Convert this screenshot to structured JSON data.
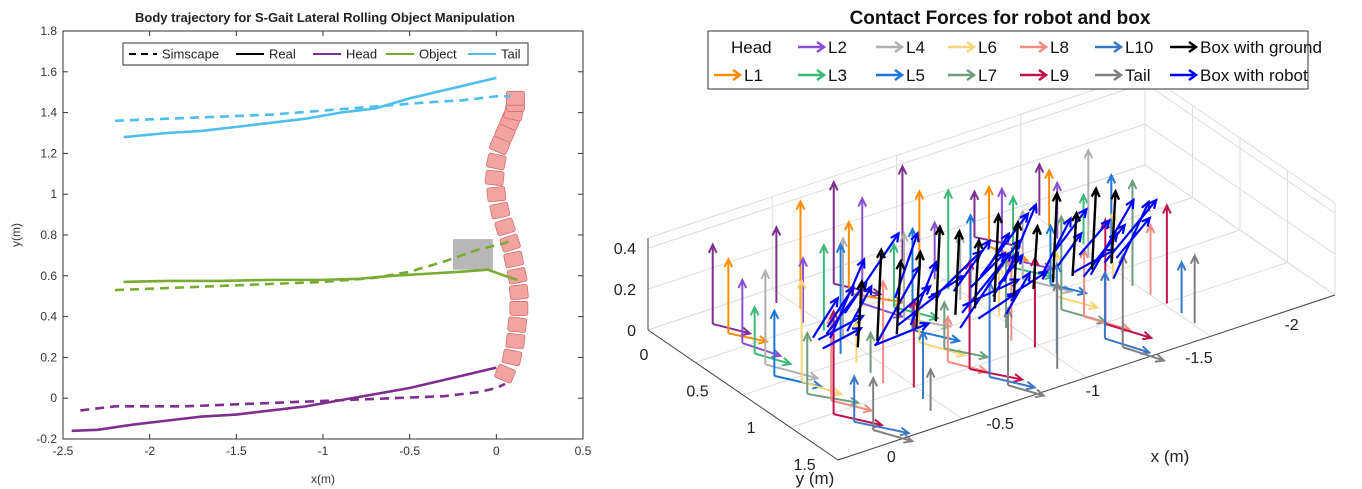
{
  "chart_data": [
    {
      "type": "line",
      "title": "Body trajectory for S-Gait Lateral Rolling Object Manipulation",
      "xlabel": "x(m)",
      "ylabel": "y(m)",
      "xlim": [
        -2.5,
        0.5
      ],
      "ylim": [
        -0.2,
        1.8
      ],
      "x_ticks": [
        -2.5,
        -2,
        -1.5,
        -1,
        -0.5,
        0,
        0.5
      ],
      "y_ticks": [
        -0.2,
        0,
        0.2,
        0.4,
        0.6,
        0.8,
        1,
        1.2,
        1.4,
        1.6,
        1.8
      ],
      "x_tick_labels": [
        "-2.5",
        "-2",
        "-1.5",
        "-1",
        "-0.5",
        "0",
        "0.5"
      ],
      "y_tick_labels": [
        "-0.2",
        "0",
        "0.2",
        "0.4",
        "0.6",
        "0.8",
        "1",
        "1.2",
        "1.4",
        "1.6",
        "1.8"
      ],
      "grid": false,
      "legend_position": "top",
      "legend": [
        {
          "label": "Simscape",
          "color": "#000000",
          "dash": true
        },
        {
          "label": "Real",
          "color": "#000000",
          "dash": false
        },
        {
          "label": "Head",
          "color": "#7E2F8E",
          "dash": false
        },
        {
          "label": "Object",
          "color": "#77AC30",
          "dash": false
        },
        {
          "label": "Tail",
          "color": "#4DBEEE",
          "dash": false
        }
      ],
      "series": [
        {
          "group": "Tail",
          "style": "dashed",
          "color": "#4DBEEE",
          "x": [
            -2.2,
            -1.9,
            -1.6,
            -1.3,
            -1.0,
            -0.7,
            -0.4,
            -0.2,
            0.0,
            0.08
          ],
          "y": [
            1.36,
            1.37,
            1.38,
            1.39,
            1.41,
            1.43,
            1.45,
            1.46,
            1.48,
            1.48
          ]
        },
        {
          "group": "Tail",
          "style": "solid",
          "color": "#4DBEEE",
          "x": [
            -2.15,
            -1.9,
            -1.7,
            -1.5,
            -1.3,
            -1.1,
            -0.9,
            -0.7,
            -0.5,
            -0.35,
            -0.2,
            -0.1,
            0.0
          ],
          "y": [
            1.28,
            1.3,
            1.31,
            1.33,
            1.35,
            1.37,
            1.4,
            1.42,
            1.47,
            1.5,
            1.53,
            1.55,
            1.57
          ]
        },
        {
          "group": "Object",
          "style": "dashed",
          "color": "#77AC30",
          "x": [
            -2.2,
            -1.9,
            -1.6,
            -1.3,
            -1.0,
            -0.7,
            -0.5,
            -0.3,
            -0.1,
            0.05,
            0.1
          ],
          "y": [
            0.53,
            0.54,
            0.55,
            0.56,
            0.57,
            0.59,
            0.62,
            0.67,
            0.73,
            0.76,
            0.78
          ]
        },
        {
          "group": "Object",
          "style": "solid",
          "color": "#77AC30",
          "x": [
            -2.15,
            -1.9,
            -1.6,
            -1.3,
            -1.0,
            -0.8,
            -0.6,
            -0.4,
            -0.2,
            -0.05,
            0.05,
            0.12
          ],
          "y": [
            0.57,
            0.575,
            0.575,
            0.58,
            0.58,
            0.585,
            0.6,
            0.61,
            0.62,
            0.63,
            0.6,
            0.58
          ]
        },
        {
          "group": "Head",
          "style": "dashed",
          "color": "#7E2F8E",
          "x": [
            -2.4,
            -2.2,
            -2.0,
            -1.8,
            -1.5,
            -1.2,
            -0.9,
            -0.6,
            -0.3,
            -0.1,
            0.0,
            0.05
          ],
          "y": [
            -0.06,
            -0.04,
            -0.04,
            -0.04,
            -0.03,
            -0.02,
            -0.01,
            0.0,
            0.01,
            0.03,
            0.05,
            0.07
          ]
        },
        {
          "group": "Head",
          "style": "solid",
          "color": "#7E2F8E",
          "x": [
            -2.45,
            -2.3,
            -2.1,
            -1.9,
            -1.7,
            -1.5,
            -1.3,
            -1.1,
            -0.9,
            -0.7,
            -0.5,
            -0.3,
            -0.15,
            -0.05,
            0.0
          ],
          "y": [
            -0.16,
            -0.155,
            -0.13,
            -0.11,
            -0.09,
            -0.08,
            -0.06,
            -0.04,
            -0.01,
            0.02,
            0.05,
            0.09,
            0.12,
            0.14,
            0.15
          ]
        }
      ],
      "robot_body": {
        "x": [
          0.05,
          0.09,
          0.11,
          0.12,
          0.13,
          0.13,
          0.12,
          0.1,
          0.08,
          0.05,
          0.02,
          0.0,
          -0.01,
          0.0,
          0.02,
          0.05,
          0.08,
          0.1,
          0.11,
          0.11
        ],
        "y": [
          0.12,
          0.2,
          0.28,
          0.36,
          0.44,
          0.52,
          0.6,
          0.68,
          0.76,
          0.84,
          0.92,
          1.0,
          1.08,
          1.16,
          1.24,
          1.3,
          1.36,
          1.4,
          1.44,
          1.47
        ],
        "color": "#F4A3A3"
      },
      "box": {
        "x0": -0.25,
        "x1": -0.02,
        "y0": 0.63,
        "y1": 0.78,
        "color": "#AAAAAA"
      }
    },
    {
      "type": "3d-quiver",
      "title": "Contact Forces for robot and box",
      "xlabel": "x (m)",
      "ylabel": "y (m)",
      "zlim": [
        0,
        0.45
      ],
      "x_tick_labels": [
        "0",
        "-0.5",
        "-1",
        "-1.5",
        "-2"
      ],
      "y_tick_labels": [
        "0",
        "0.5",
        "1",
        "1.5"
      ],
      "z_tick_labels": [
        "0",
        "0.2",
        "0.4"
      ],
      "grid": true,
      "legend_position": "top",
      "legend": [
        {
          "label": "Head",
          "color": "#7E2F8E"
        },
        {
          "label": "L1",
          "color": "#FF8C00"
        },
        {
          "label": "L2",
          "color": "#8A4FD6"
        },
        {
          "label": "L3",
          "color": "#3CB878"
        },
        {
          "label": "L4",
          "color": "#B0B0B0"
        },
        {
          "label": "L5",
          "color": "#1F77D4"
        },
        {
          "label": "L6",
          "color": "#F7D57A"
        },
        {
          "label": "L7",
          "color": "#6E9E7E"
        },
        {
          "label": "L8",
          "color": "#F08C80"
        },
        {
          "label": "L9",
          "color": "#C0124E"
        },
        {
          "label": "L10",
          "color": "#3A78C8"
        },
        {
          "label": "Tail",
          "color": "#808080"
        },
        {
          "label": "Box with ground",
          "color": "#000000"
        },
        {
          "label": "Box with robot",
          "color": "#0000FF"
        }
      ]
    }
  ]
}
